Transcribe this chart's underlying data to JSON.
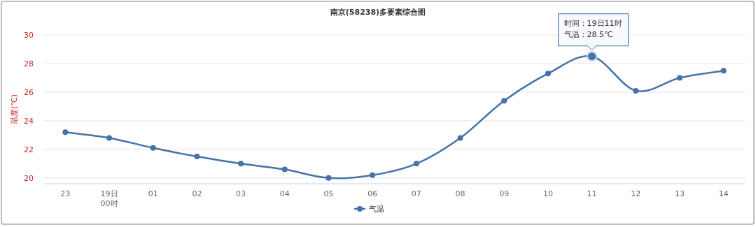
{
  "chart_data": {
    "type": "line",
    "title": "南京(58238)多要素综合图",
    "ylabel": "温度(℃)",
    "categories": [
      "23",
      "19日\n00时",
      "01",
      "02",
      "03",
      "04",
      "05",
      "06",
      "07",
      "08",
      "09",
      "10",
      "11",
      "12",
      "13",
      "14"
    ],
    "series": [
      {
        "name": "气温",
        "color": "#4572a7",
        "values": [
          23.2,
          22.8,
          22.1,
          21.5,
          21.0,
          20.6,
          20.0,
          20.2,
          21.0,
          22.8,
          25.4,
          27.3,
          28.5,
          26.1,
          27.0,
          27.5
        ]
      }
    ],
    "ylim": [
      19.6,
      30
    ],
    "yticks": [
      20,
      22,
      24,
      26,
      28,
      30
    ],
    "grid": "y",
    "legend": "bottom",
    "marker": "circle",
    "line_style": "solid",
    "annotations": [
      "时间：19日11时",
      {
        "text": "气温：28.5℃",
        "x": "11",
        "y": 28.5
      }
    ]
  }
}
